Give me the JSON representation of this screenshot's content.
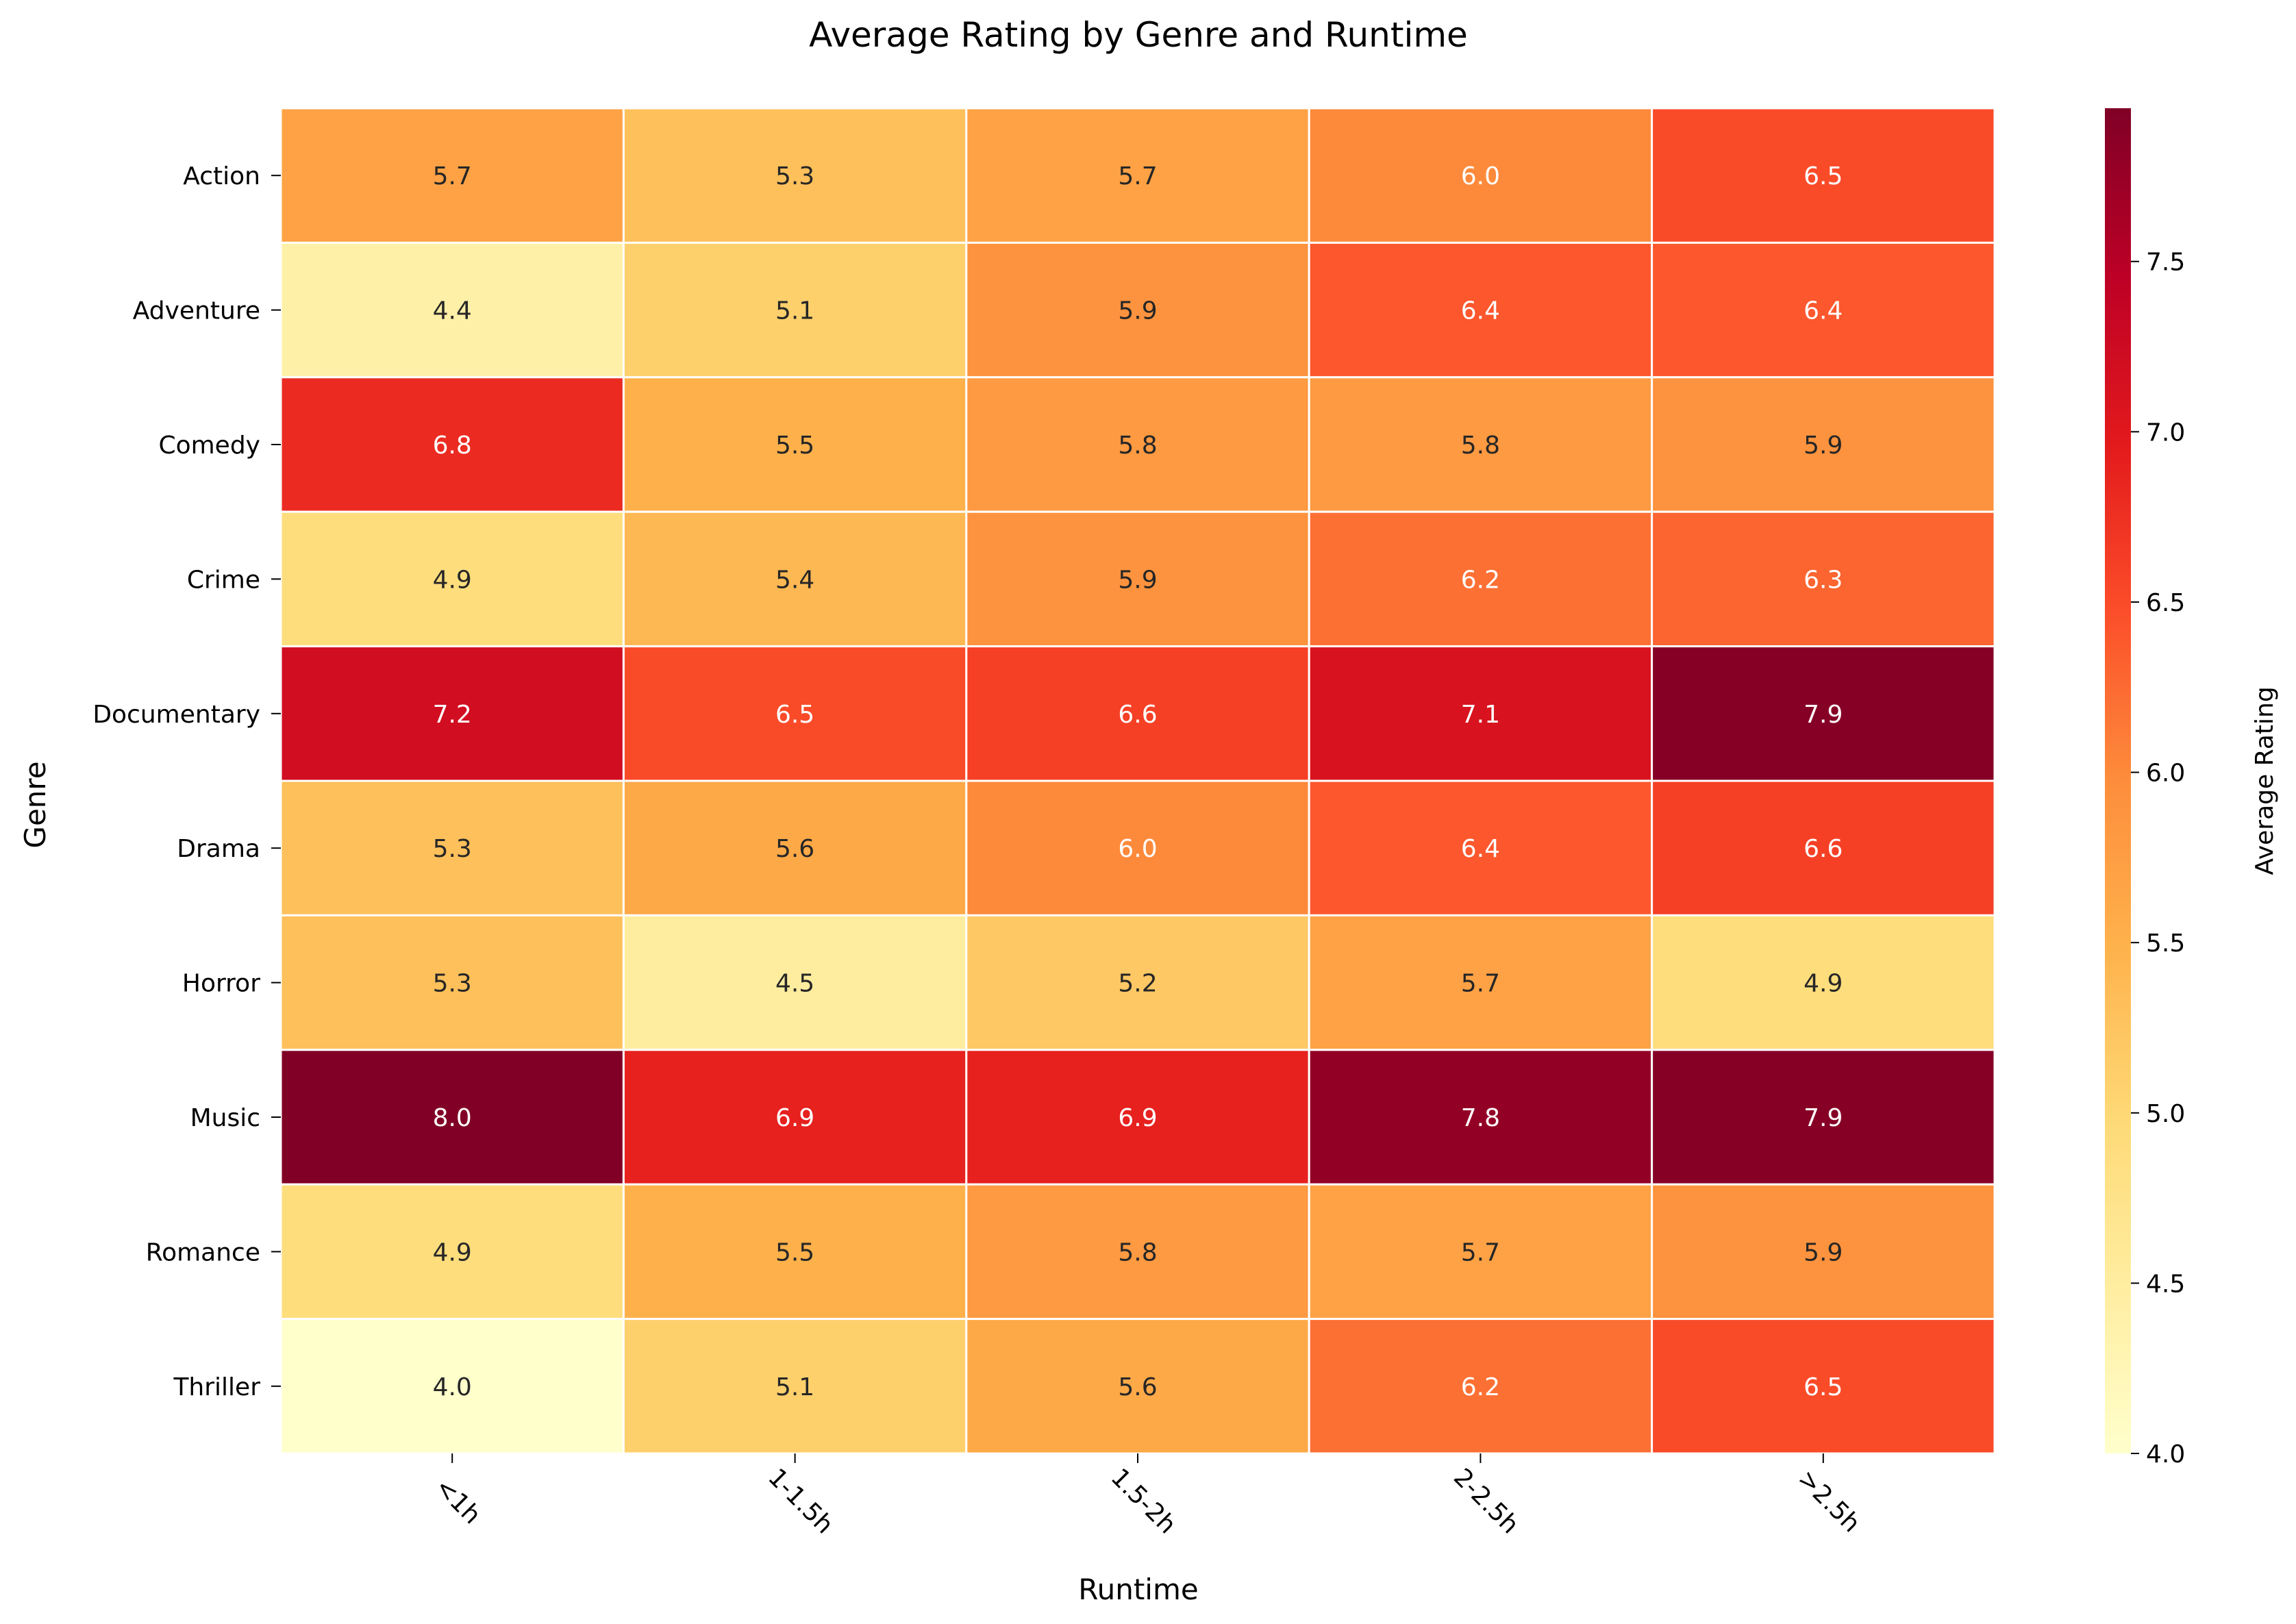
{
  "chart_data": {
    "type": "heatmap",
    "title": "Average Rating by Genre and Runtime",
    "xlabel": "Runtime",
    "ylabel": "Genre",
    "x_categories": [
      "<1h",
      "1-1.5h",
      "1.5-2h",
      "2-2.5h",
      ">2.5h"
    ],
    "y_categories": [
      "Action",
      "Adventure",
      "Comedy",
      "Crime",
      "Documentary",
      "Drama",
      "Horror",
      "Music",
      "Romance",
      "Thriller"
    ],
    "values": [
      [
        5.7,
        5.3,
        5.7,
        6.0,
        6.5
      ],
      [
        4.4,
        5.1,
        5.9,
        6.4,
        6.4
      ],
      [
        6.8,
        5.5,
        5.8,
        5.8,
        5.9
      ],
      [
        4.9,
        5.4,
        5.9,
        6.2,
        6.3
      ],
      [
        7.2,
        6.5,
        6.6,
        7.1,
        7.9
      ],
      [
        5.3,
        5.6,
        6.0,
        6.4,
        6.6
      ],
      [
        5.3,
        4.5,
        5.2,
        5.7,
        4.9
      ],
      [
        8.0,
        6.9,
        6.9,
        7.8,
        7.9
      ],
      [
        4.9,
        5.5,
        5.8,
        5.7,
        5.9
      ],
      [
        4.0,
        5.1,
        5.6,
        6.2,
        6.5
      ]
    ],
    "colorbar": {
      "label": "Average Rating",
      "range": [
        4.0,
        7.95
      ],
      "ticks": [
        "4.0",
        "4.5",
        "5.0",
        "5.5",
        "6.0",
        "6.5",
        "7.0",
        "7.5"
      ],
      "colormap": "YlOrRd"
    },
    "x_tick_rotation_deg": 45,
    "grid": false
  }
}
